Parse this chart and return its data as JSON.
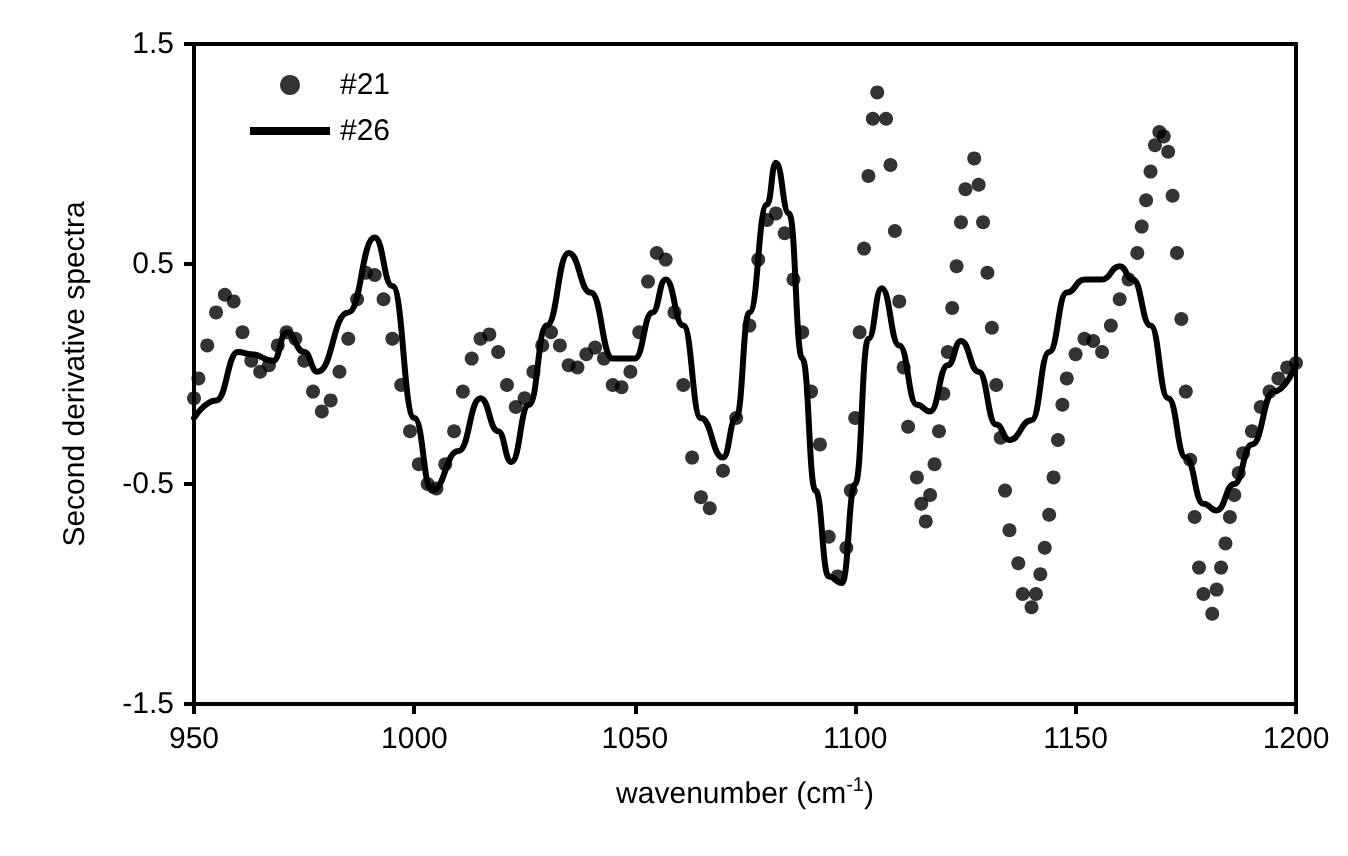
{
  "chart_data": {
    "type": "line",
    "xlabel": "wavenumber (cm$^{-1}$)",
    "ylabel": "Second derivative spectra",
    "xlim": [
      950,
      1200
    ],
    "xticks": [
      950,
      1000,
      1050,
      1100,
      1150,
      1200
    ],
    "ylim": [
      -1.5,
      1.5
    ],
    "yticks": [
      -1.5,
      -0.5,
      0.5,
      1.5
    ],
    "grid": false,
    "legend": "top left",
    "series": [
      {
        "name": "#21",
        "type": "scatter",
        "marker": "circle",
        "color": "#000000",
        "x": [
          950,
          951,
          953,
          955,
          957,
          959,
          961,
          963,
          965,
          967,
          969,
          971,
          973,
          975,
          977,
          979,
          981,
          983,
          985,
          987,
          989,
          991,
          993,
          995,
          997,
          999,
          1001,
          1003,
          1005,
          1007,
          1009,
          1011,
          1013,
          1015,
          1017,
          1019,
          1021,
          1023,
          1025,
          1027,
          1029,
          1031,
          1033,
          1035,
          1037,
          1039,
          1041,
          1043,
          1045,
          1047,
          1049,
          1051,
          1053,
          1055,
          1057,
          1059,
          1061,
          1063,
          1065,
          1067,
          1070,
          1073,
          1076,
          1078,
          1080,
          1082,
          1084,
          1086,
          1088,
          1090,
          1092,
          1094,
          1096,
          1098,
          1099,
          1100,
          1101,
          1102,
          1103,
          1104,
          1105,
          1107,
          1108,
          1109,
          1110,
          1111,
          1112,
          1114,
          1115,
          1116,
          1117,
          1118,
          1119,
          1120,
          1121,
          1122,
          1123,
          1124,
          1125,
          1127,
          1128,
          1129,
          1130,
          1131,
          1132,
          1133,
          1134,
          1135,
          1137,
          1138,
          1140,
          1141,
          1142,
          1143,
          1144,
          1145,
          1146,
          1147,
          1148,
          1150,
          1152,
          1154,
          1156,
          1158,
          1160,
          1162,
          1164,
          1165,
          1166,
          1167,
          1168,
          1169,
          1170,
          1171,
          1172,
          1173,
          1174,
          1175,
          1176,
          1177,
          1178,
          1179,
          1181,
          1182,
          1183,
          1184,
          1185,
          1186,
          1187,
          1188,
          1190,
          1192,
          1194,
          1196,
          1198,
          1200
        ],
        "values": [
          -0.11,
          -0.02,
          0.13,
          0.28,
          0.36,
          0.33,
          0.19,
          0.06,
          0.01,
          0.04,
          0.13,
          0.19,
          0.16,
          0.06,
          -0.08,
          -0.17,
          -0.12,
          0.01,
          0.16,
          0.34,
          0.46,
          0.45,
          0.34,
          0.16,
          -0.05,
          -0.26,
          -0.41,
          -0.5,
          -0.52,
          -0.41,
          -0.26,
          -0.08,
          0.07,
          0.16,
          0.18,
          0.1,
          -0.05,
          -0.15,
          -0.11,
          0.01,
          0.13,
          0.19,
          0.13,
          0.04,
          0.03,
          0.09,
          0.12,
          0.07,
          -0.05,
          -0.06,
          0.01,
          0.19,
          0.42,
          0.55,
          0.52,
          0.28,
          -0.05,
          -0.38,
          -0.56,
          -0.61,
          -0.44,
          -0.2,
          0.22,
          0.52,
          0.7,
          0.73,
          0.64,
          0.43,
          0.19,
          -0.08,
          -0.32,
          -0.74,
          -0.92,
          -0.79,
          -0.53,
          -0.2,
          0.19,
          0.57,
          0.9,
          1.16,
          1.28,
          1.16,
          0.95,
          0.65,
          0.33,
          0.03,
          -0.24,
          -0.47,
          -0.59,
          -0.67,
          -0.55,
          -0.41,
          -0.26,
          -0.09,
          0.1,
          0.3,
          0.49,
          0.69,
          0.84,
          0.98,
          0.86,
          0.69,
          0.46,
          0.21,
          -0.05,
          -0.29,
          -0.53,
          -0.71,
          -0.86,
          -1.0,
          -1.06,
          -1.0,
          -0.91,
          -0.79,
          -0.64,
          -0.47,
          -0.3,
          -0.14,
          -0.02,
          0.09,
          0.16,
          0.15,
          0.1,
          0.22,
          0.34,
          0.43,
          0.55,
          0.67,
          0.79,
          0.92,
          1.04,
          1.1,
          1.08,
          1.01,
          0.81,
          0.55,
          0.25,
          -0.08,
          -0.39,
          -0.65,
          -0.88,
          -1.0,
          -1.09,
          -0.98,
          -0.88,
          -0.77,
          -0.65,
          -0.55,
          -0.45,
          -0.36,
          -0.26,
          -0.15,
          -0.08,
          -0.02,
          0.03,
          0.05
        ]
      },
      {
        "name": "#26",
        "marker": "none",
        "line_style": "solid",
        "color": "#000000",
        "x": [
          950,
          955,
          960,
          963,
          968,
          971,
          975,
          978,
          985,
          991,
          995,
          1000,
          1004,
          1010,
          1015,
          1019,
          1022,
          1026,
          1030,
          1035,
          1040,
          1045,
          1050,
          1054,
          1057,
          1061,
          1065,
          1070,
          1073,
          1076,
          1080,
          1082,
          1085,
          1088,
          1091,
          1094,
          1097,
          1100,
          1103,
          1106,
          1110,
          1114,
          1117,
          1121,
          1124,
          1128,
          1132,
          1135,
          1140,
          1144,
          1148,
          1152,
          1156,
          1160,
          1163,
          1167,
          1171,
          1175,
          1179,
          1182,
          1186,
          1190,
          1195,
          1200
        ],
        "values": [
          -0.2,
          -0.12,
          0.1,
          0.09,
          0.06,
          0.19,
          0.1,
          0.01,
          0.28,
          0.62,
          0.4,
          -0.2,
          -0.53,
          -0.35,
          -0.11,
          -0.26,
          -0.4,
          -0.14,
          0.22,
          0.55,
          0.37,
          0.07,
          0.07,
          0.28,
          0.43,
          0.22,
          -0.2,
          -0.38,
          -0.2,
          0.28,
          0.77,
          0.96,
          0.73,
          0.07,
          -0.53,
          -0.92,
          -0.95,
          -0.5,
          0.16,
          0.39,
          0.13,
          -0.14,
          -0.17,
          0.04,
          0.15,
          0.01,
          -0.23,
          -0.3,
          -0.21,
          0.1,
          0.37,
          0.43,
          0.43,
          0.49,
          0.43,
          0.22,
          -0.11,
          -0.38,
          -0.59,
          -0.62,
          -0.5,
          -0.32,
          -0.08,
          0.04
        ]
      }
    ]
  }
}
